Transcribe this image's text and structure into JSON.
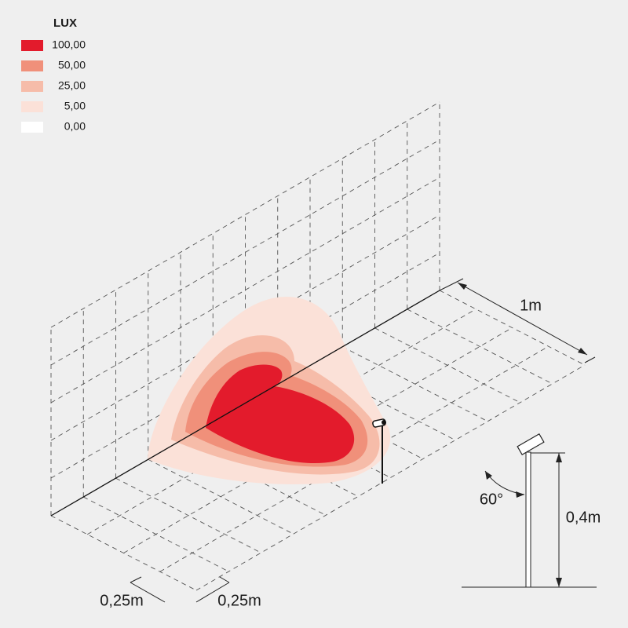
{
  "legend": {
    "title": "LUX",
    "items": [
      {
        "label": "100,00",
        "color": "#e31b2c"
      },
      {
        "label": "50,00",
        "color": "#f0907a"
      },
      {
        "label": "25,00",
        "color": "#f6bca9"
      },
      {
        "label": "5,00",
        "color": "#fbe1d8"
      },
      {
        "label": "0,00",
        "color": "#ffffff"
      }
    ]
  },
  "dimensions": {
    "length": "1m",
    "cell_left": "0,25m",
    "cell_right": "0,25m",
    "angle": "60°",
    "height": "0,4m"
  }
}
